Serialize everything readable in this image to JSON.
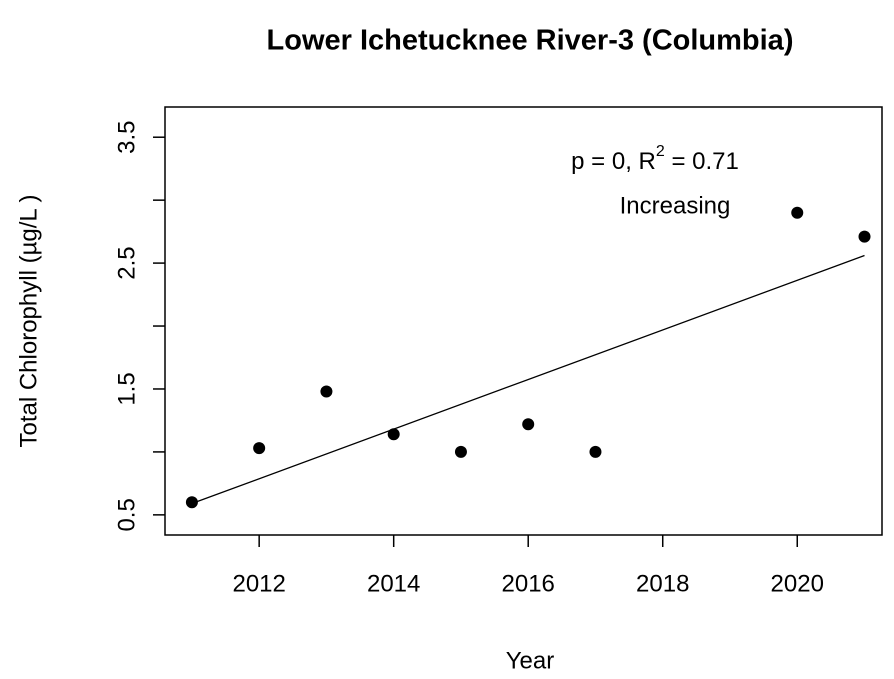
{
  "chart_data": {
    "type": "scatter",
    "title": "Lower Ichetucknee River-3 (Columbia)",
    "xlabel": "Year",
    "ylabel": "Total Chlorophyll (µg/L )",
    "x": [
      2011,
      2012,
      2013,
      2014,
      2015,
      2016,
      2017,
      2020,
      2021
    ],
    "values": [
      0.6,
      1.03,
      1.48,
      1.14,
      1.0,
      1.22,
      1.0,
      2.9,
      2.71
    ],
    "color": "#000000",
    "trend": {
      "x": [
        2011,
        2021
      ],
      "values": [
        0.59,
        2.56
      ]
    },
    "annotation": {
      "prefix": "p = 0, R",
      "superscript": "2",
      "suffix": " = 0.71"
    },
    "trend_label": "Increasing",
    "xlim": [
      2010.6,
      2021.26
    ],
    "ylim": [
      0.34,
      3.74
    ],
    "xticks": [
      2012,
      2014,
      2016,
      2018,
      2020
    ],
    "yticks": [
      0.5,
      1.5,
      2.5,
      3.5
    ],
    "yminor_ticks": [
      1,
      2,
      3
    ]
  }
}
